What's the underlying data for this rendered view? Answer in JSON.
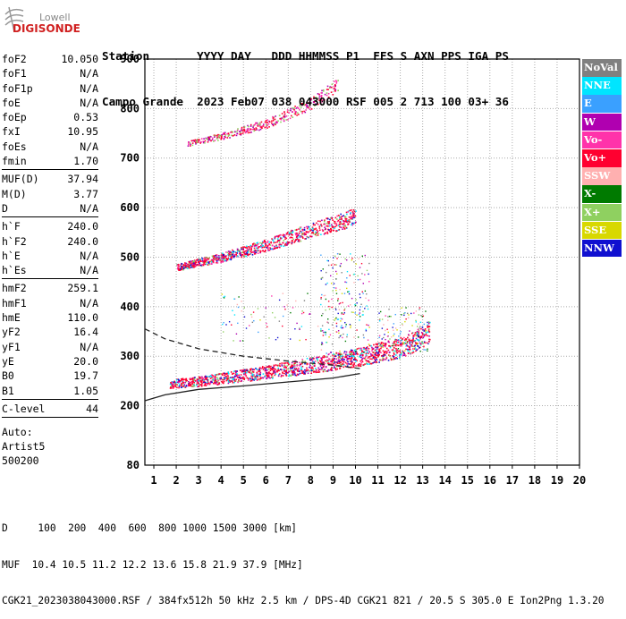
{
  "logo": {
    "line1": "Lowell",
    "line2": "DIGISONDE"
  },
  "header": {
    "row1": "Station       YYYY DAY   DDD HHMMSS P1  FFS S AXN PPS IGA PS",
    "row2": "Campo Grande  2023 Feb07 038 043000 RSF 005 2 713 100 03+ 36"
  },
  "params": {
    "g1": [
      {
        "label": "foF2",
        "value": "10.050"
      },
      {
        "label": "foF1",
        "value": "N/A"
      },
      {
        "label": "foF1p",
        "value": "N/A"
      },
      {
        "label": "foE",
        "value": "N/A"
      },
      {
        "label": "foEp",
        "value": "0.53"
      },
      {
        "label": "fxI",
        "value": "10.95"
      },
      {
        "label": "foEs",
        "value": "N/A"
      },
      {
        "label": "fmin",
        "value": "1.70"
      }
    ],
    "g2": [
      {
        "label": "MUF(D)",
        "value": "37.94"
      },
      {
        "label": "M(D)",
        "value": "3.77"
      },
      {
        "label": "D",
        "value": "N/A"
      }
    ],
    "g3": [
      {
        "label": "h`F",
        "value": "240.0"
      },
      {
        "label": "h`F2",
        "value": "240.0"
      },
      {
        "label": "h`E",
        "value": "N/A"
      },
      {
        "label": "h`Es",
        "value": "N/A"
      }
    ],
    "g4": [
      {
        "label": "hmF2",
        "value": "259.1"
      },
      {
        "label": "hmF1",
        "value": "N/A"
      },
      {
        "label": "hmE",
        "value": "110.0"
      },
      {
        "label": "yF2",
        "value": "16.4"
      },
      {
        "label": "yF1",
        "value": "N/A"
      },
      {
        "label": "yE",
        "value": "20.0"
      },
      {
        "label": "B0",
        "value": "19.7"
      },
      {
        "label": "B1",
        "value": "1.05"
      }
    ],
    "g5": [
      {
        "label": "C-level",
        "value": "44"
      }
    ],
    "auto": [
      "Auto:",
      "Artist5",
      "500200"
    ]
  },
  "legend": [
    {
      "label": "NoVal",
      "color": "#808080"
    },
    {
      "label": "NNE",
      "color": "#00e5ff"
    },
    {
      "label": "E",
      "color": "#3aa0ff"
    },
    {
      "label": "W",
      "color": "#b000b0"
    },
    {
      "label": "Vo-",
      "color": "#ff33aa"
    },
    {
      "label": "Vo+",
      "color": "#ff0030"
    },
    {
      "label": "SSW",
      "color": "#ffb0b0"
    },
    {
      "label": "X-",
      "color": "#007a00"
    },
    {
      "label": "X+",
      "color": "#8fd060"
    },
    {
      "label": "SSE",
      "color": "#d8d800"
    },
    {
      "label": "NNW",
      "color": "#1010d0"
    }
  ],
  "footer": {
    "line1": "D     100  200  400  600  800 1000 1500 3000 [km]",
    "line2": "MUF  10.4 10.5 11.2 12.2 13.6 15.8 21.9 37.9 [MHz]",
    "line3": "CGK21_2023038043000.RSF / 384fx512h 50 kHz 2.5 km / DPS-4D CGK21 821 / 20.5 S 305.0 E Ion2Png 1.3.20"
  },
  "chart_data": {
    "type": "scatter",
    "x_ticks": [
      1,
      2,
      3,
      4,
      5,
      6,
      7,
      8,
      9,
      10,
      11,
      12,
      13,
      14,
      15,
      16,
      17,
      18,
      19,
      20
    ],
    "y_ticks": [
      80,
      200,
      300,
      400,
      500,
      600,
      700,
      800,
      900
    ],
    "xlim": [
      0.6,
      20
    ],
    "ylim": [
      80,
      900
    ],
    "grid": true,
    "traces": [
      {
        "name": "O-trace",
        "x": [
          1.7,
          3,
          5,
          7,
          9,
          10,
          11,
          12,
          12.8,
          13.3
        ],
        "y": [
          245,
          250,
          262,
          275,
          290,
          298,
          308,
          318,
          335,
          350
        ]
      },
      {
        "name": "F2 second-hop",
        "x": [
          2.0,
          4,
          6,
          8,
          9.5,
          10.0
        ],
        "y": [
          480,
          500,
          525,
          555,
          575,
          585
        ]
      },
      {
        "name": "F2 third-hop",
        "x": [
          2.5,
          4,
          6,
          8,
          9.2
        ],
        "y": [
          730,
          745,
          770,
          810,
          850
        ]
      }
    ],
    "profile": {
      "solid": {
        "x": [
          0.6,
          1.5,
          3,
          5,
          7,
          9,
          10.2
        ],
        "y": [
          210,
          222,
          233,
          240,
          248,
          256,
          265
        ]
      },
      "dashed": {
        "x": [
          0.6,
          1.5,
          3,
          5,
          7,
          9,
          10.2
        ],
        "y": [
          355,
          335,
          315,
          300,
          290,
          282,
          275
        ]
      }
    }
  }
}
